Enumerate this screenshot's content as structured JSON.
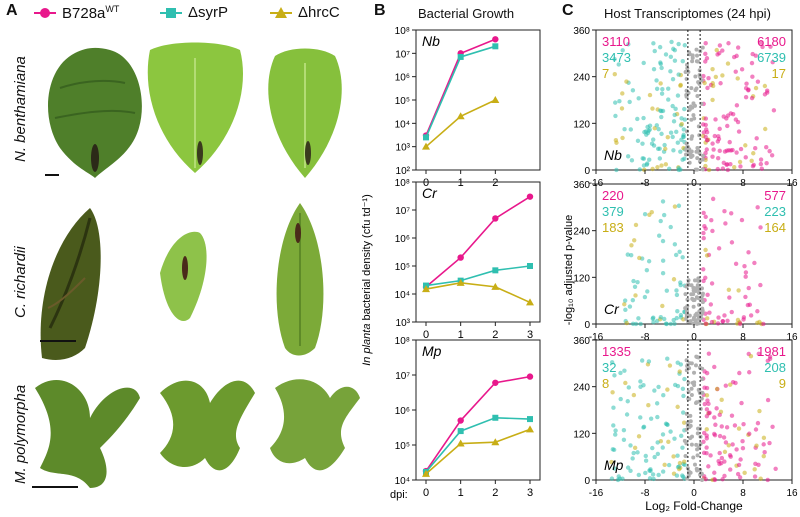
{
  "panel_labels": {
    "a": "A",
    "b": "B",
    "c": "C"
  },
  "legend": {
    "wt": {
      "label": "B728a",
      "sup": "WT",
      "color": "#e8188c",
      "marker": "circle"
    },
    "syrp": {
      "label": "ΔsyrP",
      "color": "#2fbfb0",
      "marker": "square"
    },
    "hrcc": {
      "label": "ΔhrcC",
      "color": "#c8ae16",
      "marker": "triangle"
    }
  },
  "species": {
    "nb": "N. benthamiana",
    "cr": "C. richardii",
    "mp": "M. polymorpha"
  },
  "growth": {
    "title": "Bacterial Growth",
    "ylabel_italic": "In planta",
    "ylabel_rest": " bacterial density (cfu td⁻¹)",
    "xlabel": "dpi:"
  },
  "volcano": {
    "title": "Host Transcriptomes (24 hpi)",
    "xlabel": "Log₂ Fold-Change",
    "ylabel": "-log₁₀ adjusted p-value"
  },
  "chart_data": [
    {
      "type": "line",
      "panel": "B",
      "subplot": "Nb",
      "x": [
        0,
        1,
        2
      ],
      "ylog": true,
      "ylim_exp": [
        2,
        8
      ],
      "tick_labels_y": [
        "10²",
        "10³",
        "10⁴",
        "10⁵",
        "10⁶",
        "10⁷",
        "10⁸"
      ],
      "series": [
        {
          "name": "B728aWT",
          "values": [
            3000,
            10000000,
            40000000
          ]
        },
        {
          "name": "ΔsyrP",
          "values": [
            2500,
            7000000,
            20000000
          ]
        },
        {
          "name": "ΔhrcC",
          "values": [
            1000,
            20000,
            100000
          ]
        }
      ]
    },
    {
      "type": "line",
      "panel": "B",
      "subplot": "Cr",
      "x": [
        0,
        1,
        2,
        3
      ],
      "ylog": true,
      "ylim_exp": [
        3,
        8
      ],
      "tick_labels_y": [
        "10³",
        "10⁴",
        "10⁵",
        "10⁶",
        "10⁷",
        "10⁸"
      ],
      "series": [
        {
          "name": "B728aWT",
          "values": [
            18000,
            200000,
            5000000,
            30000000
          ]
        },
        {
          "name": "ΔsyrP",
          "values": [
            20000,
            30000,
            70000,
            100000
          ]
        },
        {
          "name": "ΔhrcC",
          "values": [
            15000,
            25000,
            18000,
            5000
          ]
        }
      ]
    },
    {
      "type": "line",
      "panel": "B",
      "subplot": "Mp",
      "x": [
        0,
        1,
        2,
        3
      ],
      "ylog": true,
      "ylim_exp": [
        4,
        8
      ],
      "tick_labels_y": [
        "10⁴",
        "10⁵",
        "10⁶",
        "10⁷",
        "10⁸"
      ],
      "series": [
        {
          "name": "B728aWT",
          "values": [
            18000,
            500000,
            6000000,
            9000000
          ]
        },
        {
          "name": "ΔsyrP",
          "values": [
            17000,
            250000,
            600000,
            550000
          ]
        },
        {
          "name": "ΔhrcC",
          "values": [
            15000,
            110000,
            120000,
            280000
          ]
        }
      ]
    },
    {
      "type": "scatter",
      "panel": "C",
      "subplot": "Nb",
      "xlim": [
        -16,
        16
      ],
      "ylim": [
        0,
        360
      ],
      "x_ticks": [
        -16,
        -8,
        0,
        8,
        16
      ],
      "y_ticks": [
        0,
        120,
        240,
        360
      ],
      "counts": {
        "wt": [
          3110,
          6180
        ],
        "syrp": [
          3473,
          6739
        ],
        "hrcc": [
          7,
          17
        ]
      }
    },
    {
      "type": "scatter",
      "panel": "C",
      "subplot": "Cr",
      "xlim": [
        -16,
        16
      ],
      "ylim": [
        0,
        360
      ],
      "x_ticks": [
        -16,
        -8,
        0,
        8,
        16
      ],
      "y_ticks": [
        0,
        120,
        240,
        360
      ],
      "counts": {
        "wt": [
          220,
          577
        ],
        "syrp": [
          379,
          223
        ],
        "hrcc": [
          183,
          164
        ]
      }
    },
    {
      "type": "scatter",
      "panel": "C",
      "subplot": "Mp",
      "xlim": [
        -16,
        16
      ],
      "ylim": [
        0,
        360
      ],
      "x_ticks": [
        -16,
        -8,
        0,
        8,
        16
      ],
      "y_ticks": [
        0,
        120,
        240,
        360
      ],
      "counts": {
        "wt": [
          1335,
          1981
        ],
        "syrp": [
          32,
          208
        ],
        "hrcc": [
          8,
          9
        ]
      }
    }
  ]
}
